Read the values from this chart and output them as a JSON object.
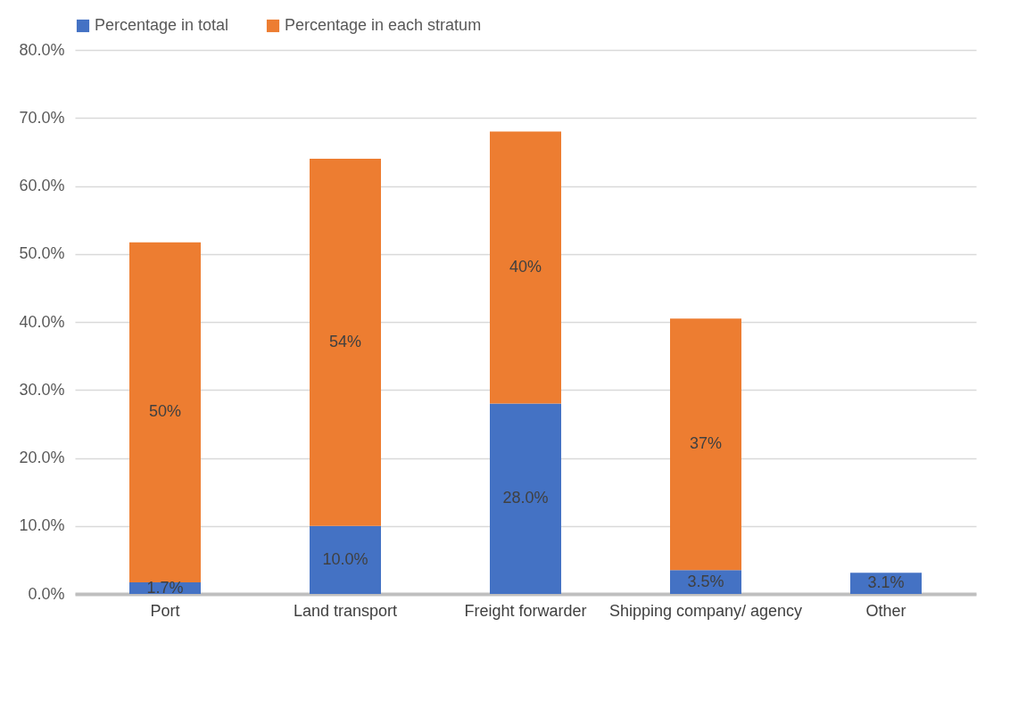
{
  "chart_data": {
    "type": "bar",
    "stacked": true,
    "categories": [
      "Port",
      "Land transport",
      "Freight forwarder",
      "Shipping company/ agency",
      "Other"
    ],
    "series": [
      {
        "name": "Percentage in total",
        "color": "#4472c4",
        "values": [
          1.7,
          10.0,
          28.0,
          3.5,
          3.1
        ],
        "value_labels": [
          "1.7%",
          "10.0%",
          "28.0%",
          "3.5%",
          "3.1%"
        ]
      },
      {
        "name": "Percentage in each stratum",
        "color": "#ed7d31",
        "values": [
          50,
          54,
          40,
          37,
          null
        ],
        "value_labels": [
          "50%",
          "54%",
          "40%",
          "37%",
          null
        ]
      }
    ],
    "ylim": [
      0,
      80
    ],
    "yticks": [
      {
        "value": 0,
        "label": "0.0%"
      },
      {
        "value": 10,
        "label": "10.0%"
      },
      {
        "value": 20,
        "label": "20.0%"
      },
      {
        "value": 30,
        "label": "30.0%"
      },
      {
        "value": 40,
        "label": "40.0%"
      },
      {
        "value": 50,
        "label": "50.0%"
      },
      {
        "value": 60,
        "label": "60.0%"
      },
      {
        "value": 70,
        "label": "70.0%"
      },
      {
        "value": 80,
        "label": "80.0%"
      }
    ],
    "grid": "y",
    "legend": "top"
  }
}
